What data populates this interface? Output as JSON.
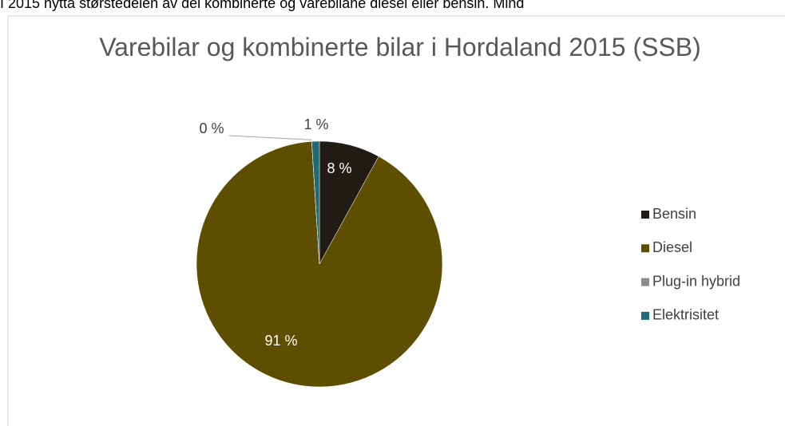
{
  "chart_data": {
    "type": "pie",
    "caption": "I 2015 nytta størstedelen av dei kombinerte og varebilane diesel eller bensin. Mind",
    "title": "Varebilar og kombinerte bilar i Hordaland 2015 (SSB)",
    "categories": [
      "Bensin",
      "Diesel",
      "Plug-in hybrid",
      "Elektrisitet"
    ],
    "values": [
      8,
      91,
      0,
      1
    ],
    "value_labels": [
      "8 %",
      "91 %",
      "0 %",
      "1 %"
    ],
    "colors": [
      "#201b14",
      "#5e4f00",
      "#8c8c8c",
      "#1f6b78"
    ],
    "legend": "right"
  }
}
